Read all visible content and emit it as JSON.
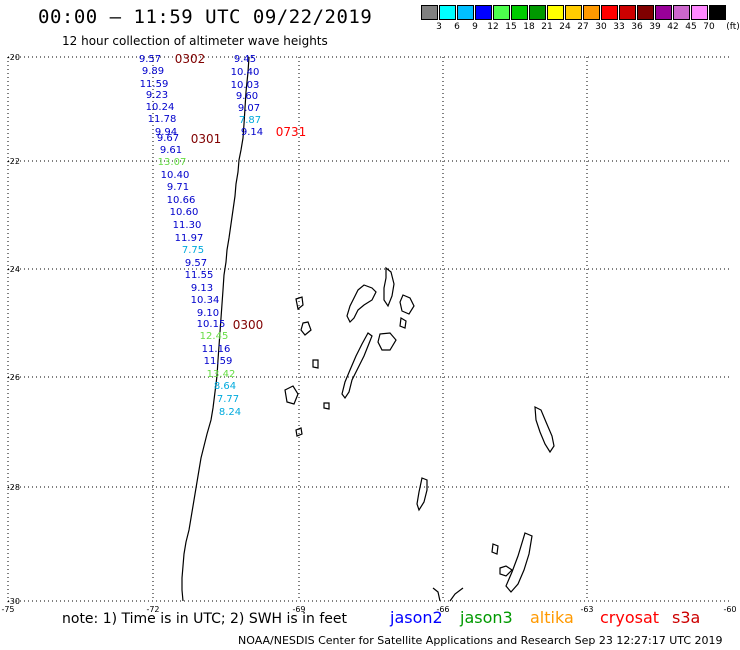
{
  "header": {
    "title": "00:00 – 11:59 UTC 09/22/2019",
    "subtitle": "12 hour collection of altimeter wave heights"
  },
  "colorbar": {
    "colors": [
      "#808080",
      "#00ffff",
      "#00bfff",
      "#0000ff",
      "#4dff4d",
      "#00cc00",
      "#009900",
      "#ffff00",
      "#ffcc00",
      "#ff9900",
      "#ff0000",
      "#cc0000",
      "#800000",
      "#990099",
      "#cc66cc",
      "#ff88ff",
      "#000000"
    ],
    "labels": [
      "3",
      "6",
      "9",
      "12",
      "15",
      "18",
      "21",
      "24",
      "27",
      "30",
      "33",
      "36",
      "39",
      "42",
      "45",
      "70",
      "(ft)"
    ]
  },
  "axes": {
    "lat_labels": [
      "-20",
      "-22",
      "-24",
      "-26",
      "-28",
      "-30"
    ],
    "lon_labels": [
      "-75",
      "-72",
      "-69",
      "-66",
      "-63",
      "-60"
    ]
  },
  "passes": [
    {
      "label": "0302",
      "color": "#800000"
    },
    {
      "label": "0301",
      "color": "#800000"
    },
    {
      "label": "0731",
      "color": "#ff0000"
    },
    {
      "label": "0300",
      "color": "#800000"
    }
  ],
  "wave_heights": [
    {
      "v": "9.57",
      "c": "#0000cc"
    },
    {
      "v": "9.89",
      "c": "#0000cc"
    },
    {
      "v": "11.59",
      "c": "#0000cc"
    },
    {
      "v": "9.23",
      "c": "#0000cc"
    },
    {
      "v": "10.24",
      "c": "#0000cc"
    },
    {
      "v": "11.78",
      "c": "#0000cc"
    },
    {
      "v": "9.94",
      "c": "#0000cc"
    },
    {
      "v": "9.67",
      "c": "#0000cc"
    },
    {
      "v": "9.61",
      "c": "#0000cc"
    },
    {
      "v": "13.07",
      "c": "#66dd44"
    },
    {
      "v": "10.40",
      "c": "#0000cc"
    },
    {
      "v": "9.71",
      "c": "#0000cc"
    },
    {
      "v": "10.66",
      "c": "#0000cc"
    },
    {
      "v": "10.60",
      "c": "#0000cc"
    },
    {
      "v": "11.30",
      "c": "#0000cc"
    },
    {
      "v": "11.97",
      "c": "#0000cc"
    },
    {
      "v": "7.75",
      "c": "#00aadd"
    },
    {
      "v": "9.57",
      "c": "#0000cc"
    },
    {
      "v": "11.55",
      "c": "#0000cc"
    },
    {
      "v": "9.13",
      "c": "#0000cc"
    },
    {
      "v": "10.34",
      "c": "#0000cc"
    },
    {
      "v": "9.10",
      "c": "#0000cc"
    },
    {
      "v": "10.15",
      "c": "#0000cc"
    },
    {
      "v": "12.45",
      "c": "#66dd44"
    },
    {
      "v": "11.16",
      "c": "#0000cc"
    },
    {
      "v": "11.59",
      "c": "#0000cc"
    },
    {
      "v": "13.42",
      "c": "#66dd44"
    },
    {
      "v": "8.64",
      "c": "#00aadd"
    },
    {
      "v": "7.77",
      "c": "#00aadd"
    },
    {
      "v": "8.24",
      "c": "#00aadd"
    },
    {
      "v": "9.45",
      "c": "#0000cc"
    },
    {
      "v": "10.40",
      "c": "#0000cc"
    },
    {
      "v": "10.03",
      "c": "#0000cc"
    },
    {
      "v": "9.60",
      "c": "#0000cc"
    },
    {
      "v": "9.07",
      "c": "#0000cc"
    },
    {
      "v": "7.87",
      "c": "#00aadd"
    },
    {
      "v": "9.14",
      "c": "#0000cc"
    }
  ],
  "footer": {
    "note": "note: 1) Time is in UTC; 2) SWH is in feet",
    "satellites": [
      {
        "name": "jason2",
        "color": "#0000ff"
      },
      {
        "name": "jason3",
        "color": "#009900"
      },
      {
        "name": "altika",
        "color": "#ff9900"
      },
      {
        "name": "cryosat",
        "color": "#ff0000"
      },
      {
        "name": "s3a",
        "color": "#cc0000"
      }
    ],
    "credit": "NOAA/NESDIS Center for Satellite Applications and Research     Sep 23 12:27:17 UTC 2019"
  }
}
